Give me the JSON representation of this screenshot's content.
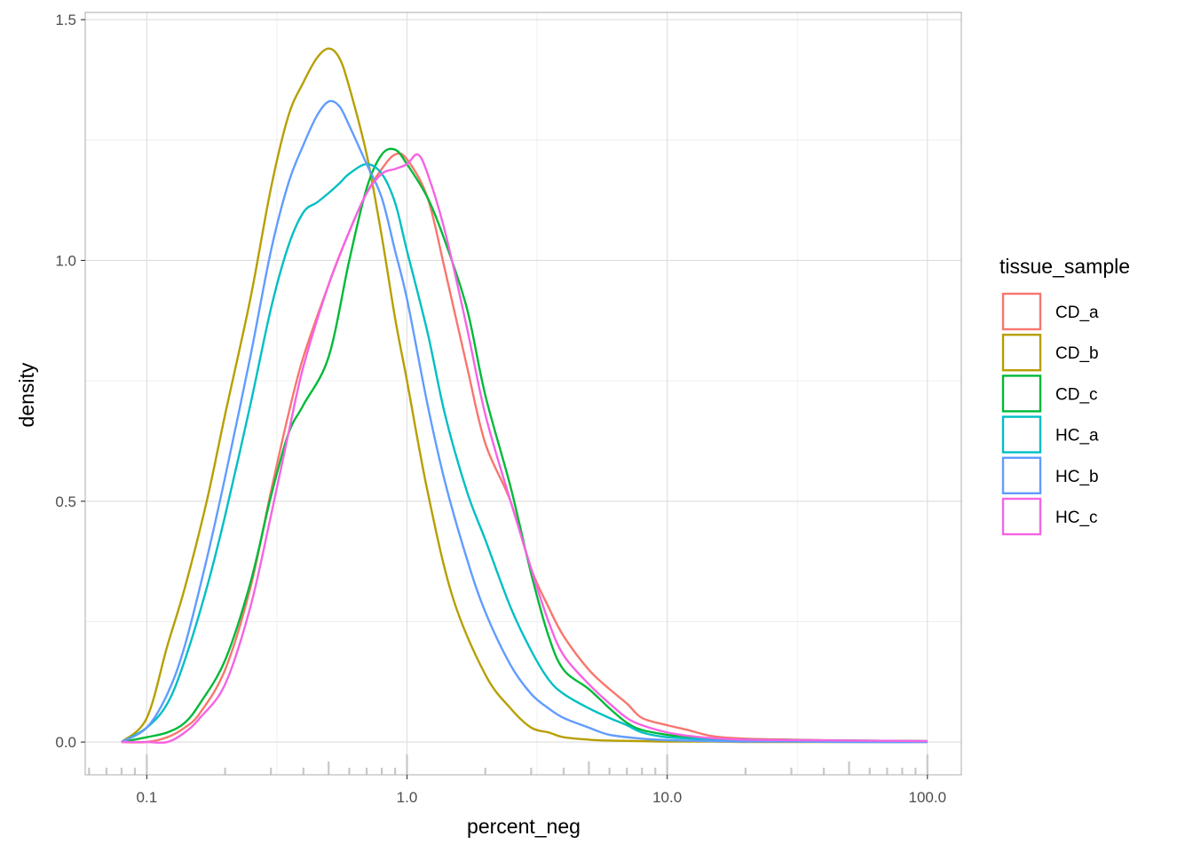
{
  "chart_data": {
    "type": "line",
    "subtype": "density",
    "xlabel": "percent_neg",
    "ylabel": "density",
    "x_scale": "log10",
    "xlim": [
      0.058,
      135
    ],
    "ylim": [
      -0.068,
      1.515
    ],
    "x_ticks": [
      {
        "value": 0.1,
        "label": "0.1"
      },
      {
        "value": 1,
        "label": "1.0"
      },
      {
        "value": 10,
        "label": "10.0"
      },
      {
        "value": 100,
        "label": "100.0"
      }
    ],
    "y_ticks": [
      {
        "value": 0,
        "label": "0.0"
      },
      {
        "value": 0.5,
        "label": "0.5"
      },
      {
        "value": 1,
        "label": "1.0"
      },
      {
        "value": 1.5,
        "label": "1.5"
      }
    ],
    "grid": true,
    "rug": true,
    "legend": {
      "title": "tissue_sample",
      "position": "right"
    },
    "series": [
      {
        "name": "CD_a",
        "color": "#F8766D",
        "x": [
          0.08,
          0.1,
          0.12,
          0.14,
          0.16,
          0.2,
          0.25,
          0.3,
          0.35,
          0.4,
          0.5,
          0.6,
          0.7,
          0.8,
          0.9,
          1.0,
          1.2,
          1.4,
          1.7,
          2.0,
          2.5,
          3.0,
          3.5,
          4.0,
          5.0,
          6.0,
          7.0,
          8.0,
          10.0,
          12.0,
          15.0,
          20.0,
          30.0,
          50.0,
          100.0
        ],
        "y": [
          0.0,
          0.0,
          0.01,
          0.03,
          0.06,
          0.15,
          0.32,
          0.52,
          0.68,
          0.8,
          0.95,
          1.06,
          1.14,
          1.19,
          1.22,
          1.21,
          1.13,
          0.98,
          0.78,
          0.62,
          0.5,
          0.36,
          0.28,
          0.22,
          0.15,
          0.11,
          0.08,
          0.05,
          0.035,
          0.025,
          0.012,
          0.007,
          0.005,
          0.003,
          0.002
        ]
      },
      {
        "name": "CD_b",
        "color": "#B79F00",
        "x": [
          0.08,
          0.1,
          0.12,
          0.14,
          0.17,
          0.2,
          0.25,
          0.3,
          0.35,
          0.4,
          0.45,
          0.5,
          0.55,
          0.6,
          0.7,
          0.8,
          0.9,
          1.0,
          1.2,
          1.5,
          2.0,
          2.5,
          3.0,
          3.5,
          4.0,
          5.0,
          6.0,
          8.0,
          10.0,
          15.0,
          20.0,
          30.0,
          50.0,
          100.0
        ],
        "y": [
          0.0,
          0.05,
          0.2,
          0.32,
          0.5,
          0.68,
          0.92,
          1.15,
          1.3,
          1.37,
          1.42,
          1.44,
          1.42,
          1.36,
          1.22,
          1.05,
          0.88,
          0.75,
          0.52,
          0.3,
          0.14,
          0.07,
          0.03,
          0.02,
          0.01,
          0.005,
          0.003,
          0.002,
          0.001,
          0.001,
          0.0,
          0.0,
          0.0,
          0.0
        ]
      },
      {
        "name": "CD_c",
        "color": "#00BA38",
        "x": [
          0.08,
          0.1,
          0.12,
          0.14,
          0.16,
          0.2,
          0.25,
          0.3,
          0.35,
          0.4,
          0.5,
          0.6,
          0.7,
          0.8,
          0.9,
          1.0,
          1.2,
          1.4,
          1.7,
          2.0,
          2.5,
          3.0,
          3.5,
          4.0,
          5.0,
          6.0,
          7.0,
          8.0,
          10.0,
          12.0,
          15.0,
          20.0,
          30.0,
          50.0,
          100.0
        ],
        "y": [
          0.0,
          0.01,
          0.02,
          0.04,
          0.08,
          0.17,
          0.33,
          0.51,
          0.64,
          0.7,
          0.8,
          1.0,
          1.15,
          1.22,
          1.23,
          1.2,
          1.13,
          1.04,
          0.9,
          0.72,
          0.53,
          0.35,
          0.22,
          0.15,
          0.11,
          0.07,
          0.04,
          0.025,
          0.015,
          0.01,
          0.007,
          0.005,
          0.004,
          0.003,
          0.002
        ]
      },
      {
        "name": "HC_a",
        "color": "#00BFC4",
        "x": [
          0.08,
          0.1,
          0.12,
          0.14,
          0.17,
          0.2,
          0.25,
          0.3,
          0.35,
          0.4,
          0.45,
          0.5,
          0.55,
          0.6,
          0.7,
          0.8,
          0.9,
          1.0,
          1.2,
          1.4,
          1.7,
          2.0,
          2.5,
          3.0,
          3.5,
          4.0,
          5.0,
          6.0,
          7.0,
          8.0,
          10.0,
          15.0,
          20.0,
          30.0,
          50.0,
          100.0
        ],
        "y": [
          0.0,
          0.03,
          0.08,
          0.17,
          0.32,
          0.47,
          0.7,
          0.9,
          1.03,
          1.1,
          1.12,
          1.14,
          1.16,
          1.18,
          1.2,
          1.18,
          1.12,
          1.02,
          0.85,
          0.68,
          0.52,
          0.42,
          0.28,
          0.19,
          0.13,
          0.1,
          0.07,
          0.05,
          0.035,
          0.02,
          0.01,
          0.005,
          0.003,
          0.002,
          0.001,
          0.001
        ]
      },
      {
        "name": "HC_b",
        "color": "#619CFF",
        "x": [
          0.08,
          0.1,
          0.12,
          0.14,
          0.17,
          0.2,
          0.25,
          0.3,
          0.35,
          0.4,
          0.45,
          0.5,
          0.55,
          0.6,
          0.7,
          0.8,
          0.9,
          1.0,
          1.2,
          1.4,
          1.7,
          2.0,
          2.5,
          3.0,
          3.5,
          4.0,
          5.0,
          6.0,
          8.0,
          10.0,
          15.0,
          20.0,
          30.0,
          50.0,
          100.0
        ],
        "y": [
          0.0,
          0.03,
          0.1,
          0.2,
          0.38,
          0.55,
          0.8,
          1.02,
          1.16,
          1.24,
          1.3,
          1.33,
          1.32,
          1.28,
          1.2,
          1.13,
          1.02,
          0.92,
          0.7,
          0.54,
          0.38,
          0.27,
          0.16,
          0.1,
          0.07,
          0.05,
          0.03,
          0.015,
          0.007,
          0.004,
          0.002,
          0.001,
          0.001,
          0.0,
          0.0
        ]
      },
      {
        "name": "HC_c",
        "color": "#F564E3",
        "x": [
          0.08,
          0.1,
          0.12,
          0.14,
          0.16,
          0.2,
          0.25,
          0.3,
          0.35,
          0.4,
          0.5,
          0.6,
          0.7,
          0.8,
          0.9,
          1.0,
          1.1,
          1.2,
          1.4,
          1.7,
          2.0,
          2.5,
          3.0,
          3.5,
          4.0,
          5.0,
          6.0,
          7.0,
          8.0,
          10.0,
          12.0,
          15.0,
          20.0,
          30.0,
          50.0,
          100.0
        ],
        "y": [
          0.0,
          0.0,
          0.0,
          0.02,
          0.05,
          0.12,
          0.28,
          0.47,
          0.64,
          0.78,
          0.95,
          1.06,
          1.14,
          1.18,
          1.19,
          1.2,
          1.22,
          1.18,
          1.06,
          0.86,
          0.68,
          0.5,
          0.36,
          0.25,
          0.18,
          0.12,
          0.08,
          0.05,
          0.035,
          0.02,
          0.013,
          0.008,
          0.005,
          0.004,
          0.003,
          0.002
        ]
      }
    ],
    "rug_x": [
      0.06,
      0.07,
      0.08,
      0.09,
      0.1,
      0.2,
      0.3,
      0.4,
      0.5,
      0.6,
      0.7,
      0.8,
      0.9,
      1.0,
      2.0,
      3.0,
      4.0,
      5.0,
      6.0,
      7.0,
      8.0,
      9.0,
      10.0,
      20.0,
      30.0,
      40.0,
      50.0,
      60.0,
      70.0,
      80.0,
      90.0,
      100.0
    ]
  }
}
